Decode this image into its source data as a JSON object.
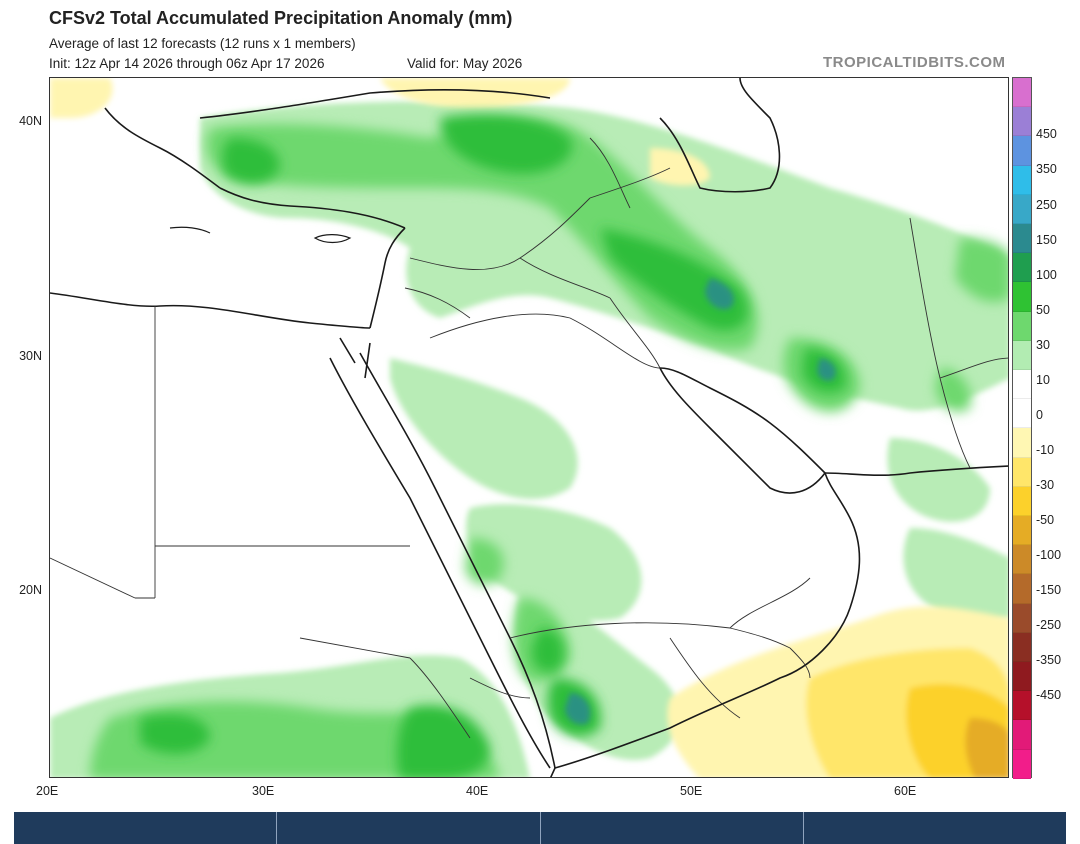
{
  "header": {
    "title": "CFSv2 Total Accumulated Precipitation Anomaly (mm)",
    "subtitle": "Average of last 12 forecasts (12 runs x 1 members)",
    "init": "Init: 12z Apr 14 2026 through 06z Apr 17 2026",
    "valid": "Valid for: May 2026",
    "credit": "TROPICALTIDBITS.COM"
  },
  "map": {
    "lat_labels": [
      "40N",
      "30N",
      "20N"
    ],
    "lon_labels": [
      "20E",
      "30E",
      "40E",
      "50E",
      "60E"
    ]
  },
  "colorbar": {
    "labels": [
      "450",
      "350",
      "250",
      "150",
      "100",
      "50",
      "30",
      "10",
      "0",
      "-10",
      "-30",
      "-50",
      "-100",
      "-150",
      "-250",
      "-350",
      "-450"
    ],
    "colors": [
      "#d86fcf",
      "#9b7fd6",
      "#5d93e0",
      "#2fbde9",
      "#38a8c8",
      "#2b8a8f",
      "#1f9e4f",
      "#2fc233",
      "#6ed86e",
      "#b2ecb2",
      "#ffffff",
      "#ffffff",
      "#fff7b3",
      "#ffe66a",
      "#fcd12b",
      "#e5ac25",
      "#cc8a28",
      "#b46a2a",
      "#9a4b2b",
      "#8a2e22",
      "#8f1a1f",
      "#b5102a",
      "#e21a78",
      "#f21d8a"
    ]
  },
  "bottom_bar": {
    "cells": [
      "",
      "",
      "",
      ""
    ]
  }
}
